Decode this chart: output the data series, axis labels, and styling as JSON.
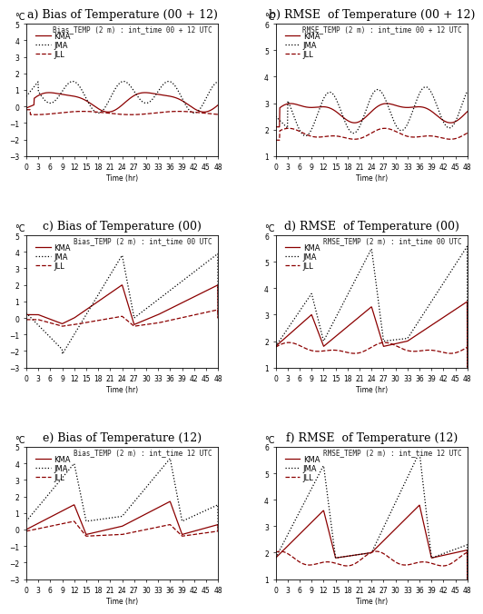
{
  "panels": [
    {
      "label": "a)",
      "title": "Bias of Temperature (00 + 12)",
      "subtitle": "Bias_TEMP (2 m) : int_time 00 + 12 UTC",
      "ylim": [
        -3,
        5
      ],
      "yticks": [
        -3,
        -2,
        -1,
        0,
        1,
        2,
        3,
        4,
        5
      ],
      "type": "bias"
    },
    {
      "label": "b)",
      "title": "RMSE  of Temperature (00 + 12)",
      "subtitle": "RMSE_TEMP (2 m) : int_time 00 + 12 UTC",
      "ylim": [
        1,
        6
      ],
      "yticks": [
        1,
        2,
        3,
        4,
        5,
        6
      ],
      "type": "rmse"
    },
    {
      "label": "c)",
      "title": "Bias of Temperature (00)",
      "subtitle": "Bias_TEMP (2 m) : int_time 00 UTC",
      "ylim": [
        -3,
        5
      ],
      "yticks": [
        -3,
        -2,
        -1,
        0,
        1,
        2,
        3,
        4,
        5
      ],
      "type": "bias"
    },
    {
      "label": "d)",
      "title": "RMSE  of Temperature (00)",
      "subtitle": "RMSE_TEMP (2 m) : int_time 00 UTC",
      "ylim": [
        1,
        6
      ],
      "yticks": [
        1,
        2,
        3,
        4,
        5,
        6
      ],
      "type": "rmse"
    },
    {
      "label": "e)",
      "title": "Bias of Temperature (12)",
      "subtitle": "Bias_TEMP (2 m) : int_time 12 UTC",
      "ylim": [
        -3,
        5
      ],
      "yticks": [
        -3,
        -2,
        -1,
        0,
        1,
        2,
        3,
        4,
        5
      ],
      "type": "bias"
    },
    {
      "label": "f)",
      "title": "RMSE  of Temperature (12)",
      "subtitle": "RMSE_TEMP (2 m) : int_time 12 UTC",
      "ylim": [
        1,
        6
      ],
      "yticks": [
        1,
        2,
        3,
        4,
        5,
        6
      ],
      "type": "rmse"
    }
  ],
  "xticks": [
    0,
    3,
    6,
    9,
    12,
    15,
    18,
    21,
    24,
    27,
    30,
    33,
    36,
    39,
    42,
    45,
    48
  ],
  "xlabel": "Time (hr)",
  "ylabel": "°C",
  "legend_labels": [
    "KMA",
    "JMA",
    "JLL"
  ],
  "colors": [
    "#8B0000",
    "#000000",
    "#8B0000"
  ],
  "styles": [
    "-",
    ":",
    "--"
  ],
  "lwidths": [
    0.9,
    0.9,
    0.9
  ],
  "bg_color": "#ffffff",
  "panel_title_fontsize": 9,
  "subtitle_fontsize": 5.5,
  "tick_fontsize": 5.5,
  "legend_fontsize": 6,
  "ylabel_fontsize": 7
}
